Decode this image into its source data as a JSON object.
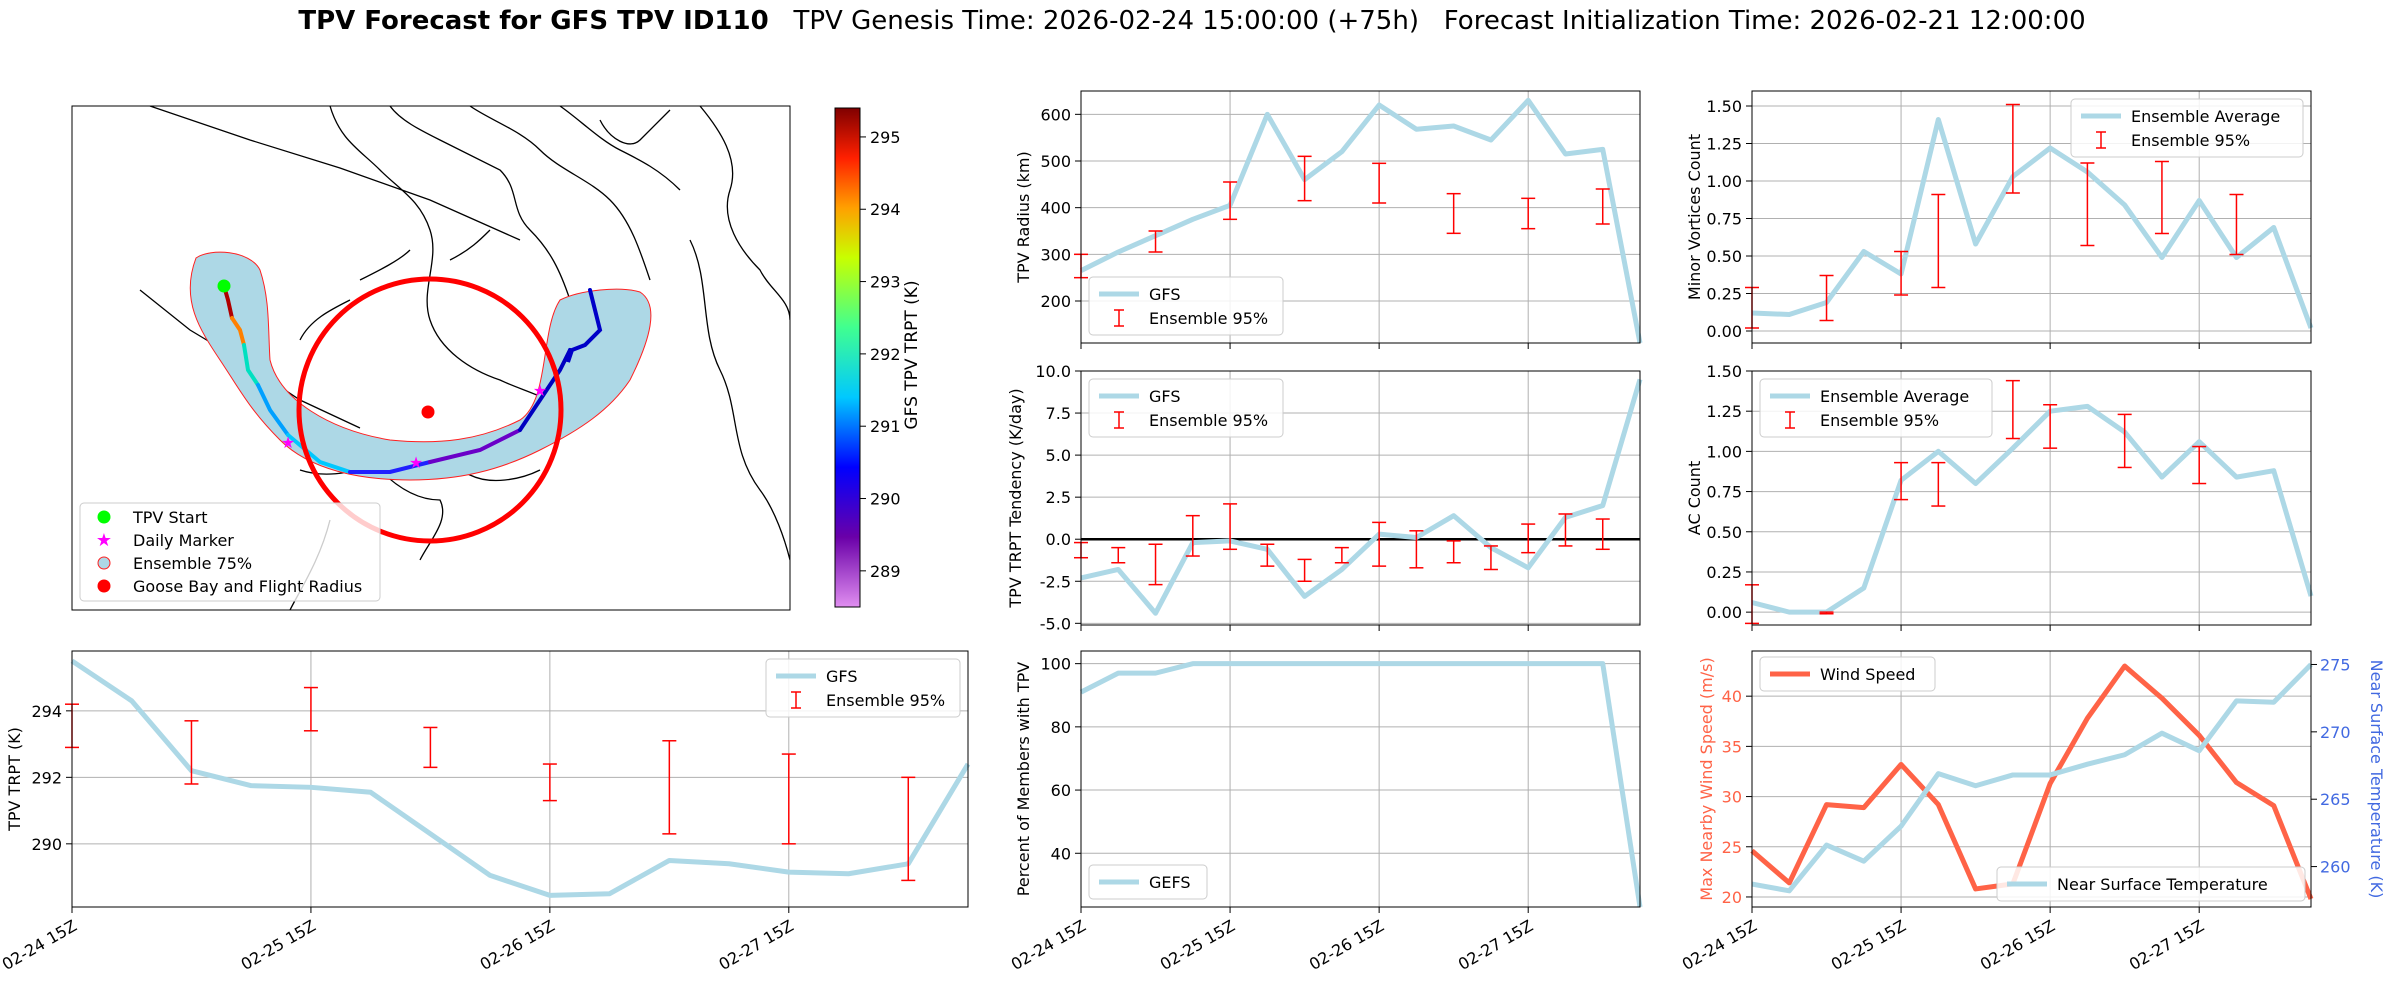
{
  "title": {
    "bold": "TPV Forecast for GFS TPV ID110",
    "genesis": "TPV Genesis Time: 2026-02-24 15:00:00 (+75h)",
    "init": "Forecast Initialization Time: 2026-02-21 12:00:00"
  },
  "colors": {
    "gfs_line": "#add8e6",
    "errorbar": "#ff0000",
    "wind": "#ff6347",
    "temp_axis": "#4169e1",
    "zero_line": "#000000",
    "grid": "#b0b0b0"
  },
  "map": {
    "colorbar_label": "GFS TPV TRPT (K)",
    "colorbar_ticks": [
      "289",
      "290",
      "291",
      "292",
      "293",
      "294",
      "295"
    ],
    "colorbar_range": [
      288.5,
      295.4
    ],
    "legend": [
      {
        "label": "TPV Start",
        "icon": "green-dot-icon"
      },
      {
        "label": "Daily Marker",
        "icon": "magenta-star-icon"
      },
      {
        "label": "Ensemble 75%",
        "icon": "lightblue-circle-icon"
      },
      {
        "label": "Goose Bay and Flight Radius",
        "icon": "red-dot-icon"
      }
    ]
  },
  "time_ticks": [
    "02-24 15Z",
    "02-25 15Z",
    "02-26 15Z",
    "02-27 15Z"
  ],
  "chart_data": [
    {
      "id": "trpt",
      "type": "line",
      "ylabel": "TPV TRPT (K)",
      "ylim": [
        288.1,
        295.8
      ],
      "yticks": [
        290,
        292,
        294
      ],
      "x_range_steps": [
        0,
        15
      ],
      "series": [
        {
          "name": "GFS",
          "x": [
            0,
            1,
            2,
            3,
            4,
            5,
            6,
            7,
            8,
            9,
            10,
            11,
            12,
            13,
            14,
            15
          ],
          "values": [
            295.5,
            294.3,
            292.2,
            291.75,
            291.7,
            291.55,
            290.3,
            289.05,
            288.45,
            288.5,
            289.5,
            289.4,
            289.15,
            289.1,
            289.4,
            292.4
          ]
        }
      ],
      "ensemble_95": [
        {
          "x": 0,
          "low": 292.9,
          "high": 294.2
        },
        {
          "x": 2,
          "low": 291.8,
          "high": 293.7
        },
        {
          "x": 4,
          "low": 293.4,
          "high": 294.7
        },
        {
          "x": 6,
          "low": 292.3,
          "high": 293.5
        },
        {
          "x": 8,
          "low": 291.3,
          "high": 292.4
        },
        {
          "x": 10,
          "low": 290.3,
          "high": 293.1
        },
        {
          "x": 12,
          "low": 290.0,
          "high": 292.7
        },
        {
          "x": 14,
          "low": 288.9,
          "high": 292.0
        }
      ],
      "legend": [
        "GFS",
        "Ensemble 95%"
      ]
    },
    {
      "id": "radius",
      "type": "line",
      "ylabel": "TPV Radius (km)",
      "ylim": [
        110,
        650
      ],
      "yticks": [
        200,
        300,
        400,
        500,
        600
      ],
      "series": [
        {
          "name": "GFS",
          "x": [
            0,
            1,
            2,
            3,
            4,
            5,
            6,
            7,
            8,
            9,
            10,
            11,
            12,
            13,
            14,
            15
          ],
          "values": [
            265,
            305,
            340,
            375,
            405,
            600,
            460,
            520,
            620,
            568,
            575,
            545,
            630,
            515,
            525,
            110
          ]
        }
      ],
      "ensemble_95": [
        {
          "x": 0,
          "low": 250,
          "high": 300
        },
        {
          "x": 2,
          "low": 305,
          "high": 350
        },
        {
          "x": 4,
          "low": 375,
          "high": 455
        },
        {
          "x": 6,
          "low": 415,
          "high": 510
        },
        {
          "x": 8,
          "low": 410,
          "high": 495
        },
        {
          "x": 10,
          "low": 345,
          "high": 430
        },
        {
          "x": 12,
          "low": 355,
          "high": 420
        },
        {
          "x": 14,
          "low": 365,
          "high": 440
        }
      ],
      "legend": [
        "GFS",
        "Ensemble 95%"
      ]
    },
    {
      "id": "tendency",
      "type": "line",
      "ylabel": "TPV TRPT Tendency (K/day)",
      "ylim": [
        -5.1,
        10.0
      ],
      "yticks": [
        -5.0,
        -2.5,
        0.0,
        2.5,
        5.0,
        7.5,
        10.0
      ],
      "series": [
        {
          "name": "GFS",
          "x": [
            0,
            1,
            2,
            3,
            4,
            5,
            6,
            7,
            8,
            9,
            10,
            11,
            12,
            13,
            14,
            15
          ],
          "values": [
            -2.3,
            -1.8,
            -4.4,
            -0.2,
            -0.1,
            -0.6,
            -3.4,
            -1.8,
            0.3,
            0.1,
            1.4,
            -0.5,
            -1.7,
            1.3,
            2.0,
            9.5
          ]
        }
      ],
      "ensemble_95": [
        {
          "x": 0,
          "low": -1.1,
          "high": -0.2
        },
        {
          "x": 1,
          "low": -1.4,
          "high": -0.5
        },
        {
          "x": 2,
          "low": -2.7,
          "high": -0.3
        },
        {
          "x": 3,
          "low": -1.0,
          "high": 1.4
        },
        {
          "x": 4,
          "low": -0.6,
          "high": 2.1
        },
        {
          "x": 5,
          "low": -1.6,
          "high": -0.3
        },
        {
          "x": 6,
          "low": -2.5,
          "high": -1.2
        },
        {
          "x": 7,
          "low": -1.4,
          "high": -0.5
        },
        {
          "x": 8,
          "low": -1.6,
          "high": 1.0
        },
        {
          "x": 9,
          "low": -1.7,
          "high": 0.5
        },
        {
          "x": 10,
          "low": -1.4,
          "high": -0.1
        },
        {
          "x": 11,
          "low": -1.8,
          "high": -0.4
        },
        {
          "x": 12,
          "low": -0.8,
          "high": 0.9
        },
        {
          "x": 13,
          "low": -0.4,
          "high": 1.5
        },
        {
          "x": 14,
          "low": -0.6,
          "high": 1.2
        }
      ],
      "legend": [
        "GFS",
        "Ensemble 95%"
      ]
    },
    {
      "id": "members",
      "type": "line",
      "ylabel": "Percent of Members with TPV",
      "ylim": [
        23,
        104
      ],
      "yticks": [
        40,
        60,
        80,
        100
      ],
      "series": [
        {
          "name": "GEFS",
          "x": [
            0,
            1,
            2,
            3,
            4,
            5,
            6,
            7,
            8,
            9,
            10,
            11,
            12,
            13,
            14,
            15
          ],
          "values": [
            91,
            97,
            97,
            100,
            100,
            100,
            100,
            100,
            100,
            100,
            100,
            100,
            100,
            100,
            100,
            23
          ]
        }
      ],
      "legend": [
        "GEFS"
      ]
    },
    {
      "id": "minor",
      "type": "line",
      "ylabel": "Minor Vortices Count",
      "ylim": [
        -0.08,
        1.6
      ],
      "yticks": [
        0.0,
        0.25,
        0.5,
        0.75,
        1.0,
        1.25,
        1.5
      ],
      "series": [
        {
          "name": "Ensemble Average",
          "x": [
            0,
            1,
            2,
            3,
            4,
            5,
            6,
            7,
            8,
            9,
            10,
            11,
            12,
            13,
            14,
            15
          ],
          "values": [
            0.12,
            0.11,
            0.19,
            0.53,
            0.38,
            1.41,
            0.58,
            1.03,
            1.22,
            1.06,
            0.84,
            0.49,
            0.87,
            0.49,
            0.69,
            0.02
          ]
        }
      ],
      "ensemble_95": [
        {
          "x": 0,
          "low": 0.02,
          "high": 0.29
        },
        {
          "x": 2,
          "low": 0.07,
          "high": 0.37
        },
        {
          "x": 4,
          "low": 0.24,
          "high": 0.53
        },
        {
          "x": 5,
          "low": 0.29,
          "high": 0.91
        },
        {
          "x": 7,
          "low": 0.92,
          "high": 1.51
        },
        {
          "x": 9,
          "low": 0.57,
          "high": 1.12
        },
        {
          "x": 11,
          "low": 0.65,
          "high": 1.13
        },
        {
          "x": 13,
          "low": 0.51,
          "high": 0.91
        }
      ],
      "legend": [
        "Ensemble Average",
        "Ensemble 95%"
      ]
    },
    {
      "id": "ac",
      "type": "line",
      "ylabel": "AC Count",
      "ylim": [
        -0.08,
        1.5
      ],
      "yticks": [
        0.0,
        0.25,
        0.5,
        0.75,
        1.0,
        1.25,
        1.5
      ],
      "series": [
        {
          "name": "Ensemble Average",
          "x": [
            0,
            1,
            2,
            3,
            4,
            5,
            6,
            7,
            8,
            9,
            10,
            11,
            12,
            13,
            14,
            15
          ],
          "values": [
            0.06,
            0.0,
            0.0,
            0.15,
            0.82,
            1.0,
            0.8,
            1.02,
            1.25,
            1.28,
            1.12,
            0.84,
            1.06,
            0.84,
            0.88,
            0.1
          ]
        }
      ],
      "ensemble_95": [
        {
          "x": 0,
          "low": -0.07,
          "high": 0.17
        },
        {
          "x": 2,
          "low": -0.01,
          "high": 0.0
        },
        {
          "x": 4,
          "low": 0.7,
          "high": 0.93
        },
        {
          "x": 5,
          "low": 0.66,
          "high": 0.93
        },
        {
          "x": 7,
          "low": 1.08,
          "high": 1.44
        },
        {
          "x": 8,
          "low": 1.02,
          "high": 1.29
        },
        {
          "x": 10,
          "low": 0.9,
          "high": 1.23
        },
        {
          "x": 12,
          "low": 0.8,
          "high": 1.03
        }
      ],
      "legend": [
        "Ensemble Average",
        "Ensemble 95%"
      ]
    },
    {
      "id": "wind_temp",
      "type": "line",
      "ylabel": "Max Nearby Wind Speed (m/s)",
      "ylabel_right": "Near Surface Temperature (K)",
      "ylim": [
        19.0,
        44.5
      ],
      "yticks": [
        20,
        25,
        30,
        35,
        40
      ],
      "ylim_right": [
        257.0,
        276.0
      ],
      "yticks_right": [
        260,
        265,
        270,
        275
      ],
      "series": [
        {
          "name": "Wind Speed",
          "axis": "left",
          "x": [
            0,
            1,
            2,
            3,
            4,
            5,
            6,
            7,
            8,
            9,
            10,
            11,
            12,
            13,
            14,
            15
          ],
          "values": [
            24.6,
            21.4,
            29.2,
            28.9,
            33.2,
            29.2,
            20.8,
            21.3,
            31.3,
            37.8,
            43.0,
            39.8,
            36.1,
            31.4,
            29.1,
            19.8
          ]
        },
        {
          "name": "Near Surface Temperature",
          "axis": "right",
          "x": [
            0,
            1,
            2,
            3,
            4,
            5,
            6,
            7,
            8,
            9,
            10,
            11,
            12,
            13,
            14,
            15
          ],
          "values": [
            258.7,
            258.2,
            261.6,
            260.4,
            263.0,
            266.9,
            266.0,
            266.8,
            266.8,
            267.6,
            268.3,
            269.9,
            268.6,
            272.3,
            272.2,
            275.0
          ]
        }
      ],
      "legend_left": [
        "Wind Speed"
      ],
      "legend_right": [
        "Near Surface Temperature"
      ]
    }
  ]
}
